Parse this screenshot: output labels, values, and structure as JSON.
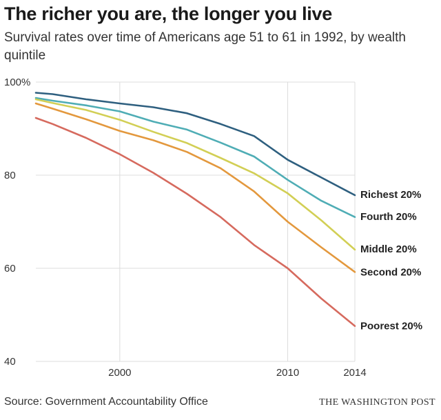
{
  "chart_data": {
    "type": "line",
    "title": "The richer you are, the longer you live",
    "subtitle": "Survival rates over time of Americans age 51 to 61 in 1992, by wealth quintile",
    "xlabel": "",
    "ylabel": "",
    "x": [
      1995,
      1996,
      1998,
      2000,
      2002,
      2004,
      2006,
      2008,
      2010,
      2012,
      2014
    ],
    "xlim": [
      1995,
      2014
    ],
    "ylim": [
      40,
      100
    ],
    "x_ticks": [
      {
        "value": 2000,
        "label": "2000"
      },
      {
        "value": 2010,
        "label": "2010"
      },
      {
        "value": 2014,
        "label": "2014"
      }
    ],
    "y_ticks": [
      {
        "value": 100,
        "label": "100%"
      },
      {
        "value": 80,
        "label": "80"
      },
      {
        "value": 60,
        "label": "60"
      },
      {
        "value": 40,
        "label": "40"
      }
    ],
    "grid": true,
    "legend": "direct labels at line ends (right)",
    "series": [
      {
        "name": "Richest 20%",
        "color": "#2e5f7f",
        "values": [
          97.7,
          97.4,
          96.3,
          95.4,
          94.6,
          93.3,
          91.0,
          88.4,
          83.3,
          79.5,
          75.7
        ]
      },
      {
        "name": "Fourth 20%",
        "color": "#4fadb5",
        "values": [
          96.6,
          96.0,
          95.0,
          93.7,
          91.5,
          89.8,
          87.0,
          84.0,
          79.0,
          74.5,
          71.0
        ]
      },
      {
        "name": "Middle 20%",
        "color": "#d2cf55",
        "values": [
          96.3,
          95.5,
          94.0,
          91.9,
          89.3,
          86.9,
          83.7,
          80.4,
          76.1,
          70.3,
          64.0
        ]
      },
      {
        "name": "Second 20%",
        "color": "#e3983d",
        "values": [
          95.4,
          94.3,
          92.0,
          89.5,
          87.5,
          85.0,
          81.5,
          76.5,
          70.0,
          64.5,
          59.2
        ]
      },
      {
        "name": "Poorest 20%",
        "color": "#d66a5e",
        "values": [
          92.3,
          91.0,
          88.0,
          84.5,
          80.5,
          76.0,
          71.0,
          65.0,
          60.0,
          53.5,
          47.6
        ]
      }
    ]
  },
  "footer": {
    "source": "Source: Government Accountability Office",
    "credit": "THE WASHINGTON POST"
  }
}
